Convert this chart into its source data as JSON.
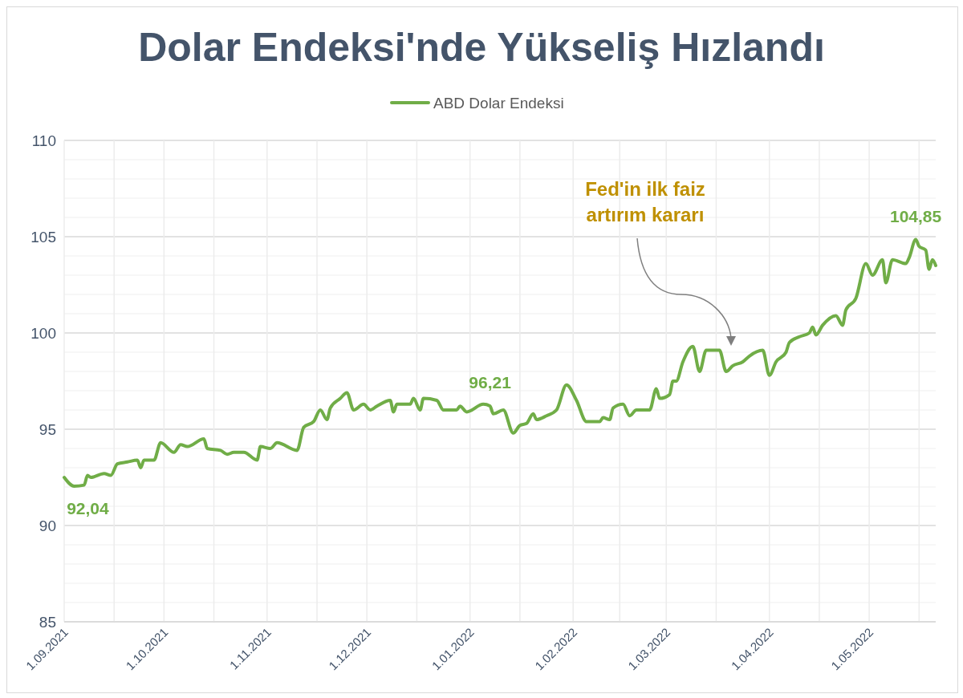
{
  "chart_data": {
    "type": "line",
    "title": "Dolar Endeksi'nde Yükseliş Hızlandı",
    "legend": "top",
    "grid": true,
    "line_style": "solid",
    "marker": "none",
    "xlim": [
      "2021-09-01",
      "2022-05-21"
    ],
    "xticks": [
      {
        "value": "2021-09-01",
        "label": "1.09.2021"
      },
      {
        "value": "2021-09-16",
        "label": null
      },
      {
        "value": "2021-10-01",
        "label": "1.10.2021"
      },
      {
        "value": "2021-10-16",
        "label": null
      },
      {
        "value": "2021-11-01",
        "label": "1.11.2021"
      },
      {
        "value": "2021-11-16",
        "label": null
      },
      {
        "value": "2021-12-01",
        "label": "1.12.2021"
      },
      {
        "value": "2021-12-16",
        "label": null
      },
      {
        "value": "2022-01-01",
        "label": "1.01.2022"
      },
      {
        "value": "2022-01-16",
        "label": null
      },
      {
        "value": "2022-02-01",
        "label": "1.02.2022"
      },
      {
        "value": "2022-02-15",
        "label": null
      },
      {
        "value": "2022-03-01",
        "label": "1.03.2022"
      },
      {
        "value": "2022-03-16",
        "label": null
      },
      {
        "value": "2022-04-01",
        "label": "1.04.2022"
      },
      {
        "value": "2022-04-16",
        "label": null
      },
      {
        "value": "2022-05-01",
        "label": "1.05.2022"
      },
      {
        "value": "2022-05-16",
        "label": null
      }
    ],
    "ylim": [
      85,
      110
    ],
    "yticks": [
      85,
      {
        "value": 86,
        "label": null
      },
      {
        "value": 87,
        "label": null
      },
      {
        "value": 88,
        "label": null
      },
      {
        "value": 89,
        "label": null
      },
      90,
      {
        "value": 91,
        "label": null
      },
      {
        "value": 92,
        "label": null
      },
      {
        "value": 93,
        "label": null
      },
      {
        "value": 94,
        "label": null
      },
      95,
      {
        "value": 96,
        "label": null
      },
      {
        "value": 97,
        "label": null
      },
      {
        "value": 98,
        "label": null
      },
      {
        "value": 99,
        "label": null
      },
      100,
      {
        "value": 101,
        "label": null
      },
      {
        "value": 102,
        "label": null
      },
      {
        "value": 103,
        "label": null
      },
      {
        "value": 104,
        "label": null
      },
      105,
      {
        "value": 106,
        "label": null
      },
      {
        "value": 107,
        "label": null
      },
      {
        "value": 108,
        "label": null
      },
      {
        "value": 109,
        "label": null
      },
      110
    ],
    "x": [
      "2021-09-01",
      "2021-09-04",
      "2021-09-07",
      "2021-09-08",
      "2021-09-09",
      "2021-09-13",
      "2021-09-15",
      "2021-09-17",
      "2021-09-20",
      "2021-09-23",
      "2021-09-24",
      "2021-09-25",
      "2021-09-28",
      "2021-09-30",
      "2021-10-04",
      "2021-10-06",
      "2021-10-08",
      "2021-10-13",
      "2021-10-14",
      "2021-10-18",
      "2021-10-20",
      "2021-10-22",
      "2021-10-25",
      "2021-10-29",
      "2021-10-30",
      "2021-11-02",
      "2021-11-04",
      "2021-11-10",
      "2021-11-12",
      "2021-11-15",
      "2021-11-17",
      "2021-11-19",
      "2021-11-20",
      "2021-11-23",
      "2021-11-25",
      "2021-11-27",
      "2021-11-30",
      "2021-12-02",
      "2021-12-04",
      "2021-12-08",
      "2021-12-09",
      "2021-12-10",
      "2021-12-14",
      "2021-12-15",
      "2021-12-17",
      "2021-12-18",
      "2021-12-22",
      "2021-12-24",
      "2021-12-28",
      "2021-12-29",
      "2021-12-31",
      "2022-01-05",
      "2022-01-07",
      "2022-01-08",
      "2022-01-11",
      "2022-01-14",
      "2022-01-16",
      "2022-01-18",
      "2022-01-20",
      "2022-01-21",
      "2022-01-24",
      "2022-01-27",
      "2022-01-30",
      "2022-02-02",
      "2022-02-05",
      "2022-02-09",
      "2022-02-10",
      "2022-02-12",
      "2022-02-13",
      "2022-02-16",
      "2022-02-18",
      "2022-02-20",
      "2022-02-24",
      "2022-02-26",
      "2022-02-27",
      "2022-03-02",
      "2022-03-03",
      "2022-03-04",
      "2022-03-06",
      "2022-03-09",
      "2022-03-11",
      "2022-03-13",
      "2022-03-17",
      "2022-03-19",
      "2022-03-21",
      "2022-03-24",
      "2022-03-26",
      "2022-03-30",
      "2022-04-01",
      "2022-04-03",
      "2022-04-06",
      "2022-04-07",
      "2022-04-10",
      "2022-04-13",
      "2022-04-14",
      "2022-04-15",
      "2022-04-17",
      "2022-04-21",
      "2022-04-23",
      "2022-04-24",
      "2022-04-27",
      "2022-04-30",
      "2022-05-02",
      "2022-05-05",
      "2022-05-06",
      "2022-05-08",
      "2022-05-12",
      "2022-05-13",
      "2022-05-15",
      "2022-05-16",
      "2022-05-18",
      "2022-05-19",
      "2022-05-20",
      "2022-05-21"
    ],
    "series": [
      {
        "name": "ABD Dolar Endeksi",
        "color": "#70ad47",
        "values": [
          92.5,
          92.04,
          92.1,
          92.6,
          92.5,
          92.7,
          92.6,
          93.2,
          93.3,
          93.4,
          93.0,
          93.4,
          93.4,
          94.3,
          93.8,
          94.2,
          94.1,
          94.5,
          94.0,
          93.9,
          93.7,
          93.8,
          93.8,
          93.4,
          94.1,
          94.0,
          94.3,
          93.9,
          95.1,
          95.4,
          96.0,
          95.5,
          96.1,
          96.6,
          96.9,
          96.0,
          96.3,
          96.0,
          96.2,
          96.5,
          95.9,
          96.3,
          96.3,
          96.6,
          96.0,
          96.6,
          96.5,
          96.0,
          96.0,
          96.2,
          95.9,
          96.3,
          96.21,
          95.8,
          96.0,
          94.8,
          95.2,
          95.3,
          95.8,
          95.5,
          95.7,
          96.0,
          97.3,
          96.5,
          95.4,
          95.4,
          95.6,
          95.5,
          96.1,
          96.3,
          95.7,
          96.0,
          96.0,
          97.1,
          96.6,
          96.8,
          97.5,
          97.5,
          98.5,
          99.3,
          98.0,
          99.1,
          99.1,
          98.0,
          98.3,
          98.5,
          98.8,
          99.1,
          97.8,
          98.5,
          99.0,
          99.5,
          99.8,
          100.0,
          100.3,
          99.9,
          100.4,
          100.9,
          100.4,
          101.2,
          101.8,
          103.6,
          103.0,
          103.8,
          102.6,
          103.8,
          103.6,
          103.9,
          104.85,
          104.5,
          104.3,
          103.3,
          103.8,
          103.5
        ]
      }
    ],
    "annotations": [
      {
        "text": "92,04",
        "x": "2021-09-04",
        "y": 92.04
      },
      {
        "text": "96,21",
        "x": "2022-01-07",
        "y": 96.21
      },
      {
        "text": "104,85",
        "x": "2022-05-15",
        "y": 104.85
      },
      "Fed'in ilk faiz\nartırım kararı"
    ]
  }
}
